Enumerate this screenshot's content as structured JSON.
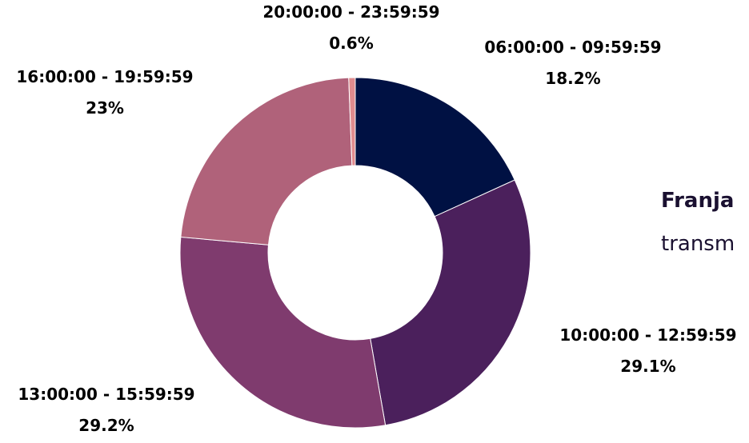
{
  "chart_data": {
    "type": "pie",
    "donut": true,
    "categories": [
      "06:00:00 - 09:59:59",
      "10:00:00 - 12:59:59",
      "13:00:00 - 15:59:59",
      "16:00:00 - 19:59:59",
      "20:00:00 - 23:59:59"
    ],
    "values": [
      18.2,
      29.1,
      29.2,
      23.0,
      0.6
    ],
    "value_labels": [
      "18.2%",
      "29.1%",
      "29.2%",
      "23%",
      "0.6%"
    ],
    "colors": [
      "#001143",
      "#4b205c",
      "#7f3b6e",
      "#b0627a",
      "#e08c8e"
    ],
    "start_angle_deg": 0,
    "direction": "clockwise"
  },
  "side_text": {
    "title": "Franja",
    "subtitle": "transm"
  }
}
